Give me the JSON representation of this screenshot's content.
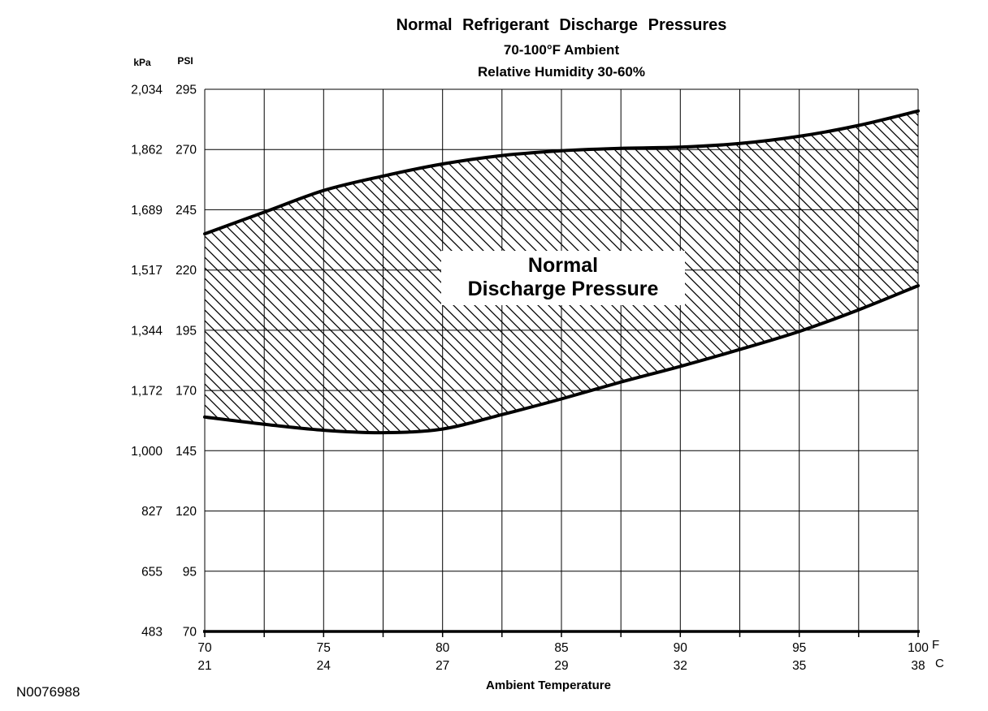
{
  "header": {
    "title": "Normal Refrigerant Discharge Pressures",
    "subtitle1": "70-100°F Ambient",
    "subtitle2": "Relative Humidity 30-60%"
  },
  "axes": {
    "y_unit_left": "kPa",
    "y_unit_right": "PSI",
    "x_unit_f": "F",
    "x_unit_c": "C",
    "xlabel": "Ambient Temperature"
  },
  "band_label": {
    "line1": "Normal",
    "line2": "Discharge Pressure"
  },
  "footer": {
    "doc_id": "N0076988"
  },
  "chart_data": {
    "type": "area",
    "title": "Normal Refrigerant Discharge Pressures",
    "subtitle": "70-100°F Ambient, Relative Humidity 30-60%",
    "xlabel": "Ambient Temperature",
    "ylabel": "Discharge Pressure",
    "grid": true,
    "band_label": "Normal Discharge Pressure",
    "x_axis": {
      "range_f": [
        70,
        100
      ],
      "gridline_step_f": 2.5,
      "f_ticks": [
        70,
        75,
        80,
        85,
        90,
        95,
        100
      ],
      "c_ticks": [
        21,
        24,
        27,
        29,
        32,
        35,
        38
      ]
    },
    "y_axis": {
      "range_psi": [
        70,
        295
      ],
      "psi_ticks": [
        295,
        270,
        245,
        220,
        195,
        170,
        145,
        120,
        95,
        70
      ],
      "kpa_ticks": [
        "2,034",
        "1,862",
        "1,689",
        "1,517",
        "1,344",
        "1,172",
        "1,000",
        "827",
        "655",
        "483"
      ]
    },
    "series": [
      {
        "name": "upper-limit-psi",
        "x_f": [
          70,
          72.5,
          75,
          77.5,
          80,
          82.5,
          85,
          87.5,
          90,
          92.5,
          95,
          97.5,
          100
        ],
        "psi": [
          235,
          244,
          253,
          259,
          264,
          267.5,
          269.5,
          270.5,
          271,
          272.5,
          275.5,
          280,
          286
        ]
      },
      {
        "name": "lower-limit-psi",
        "x_f": [
          70,
          72.5,
          75,
          77.5,
          80,
          82.5,
          85,
          87.5,
          90,
          92.5,
          95,
          97.5,
          100
        ],
        "psi": [
          159,
          156,
          153.5,
          152.5,
          154,
          160,
          166.5,
          173.5,
          180,
          187,
          194.5,
          203.5,
          213.5
        ]
      }
    ]
  }
}
